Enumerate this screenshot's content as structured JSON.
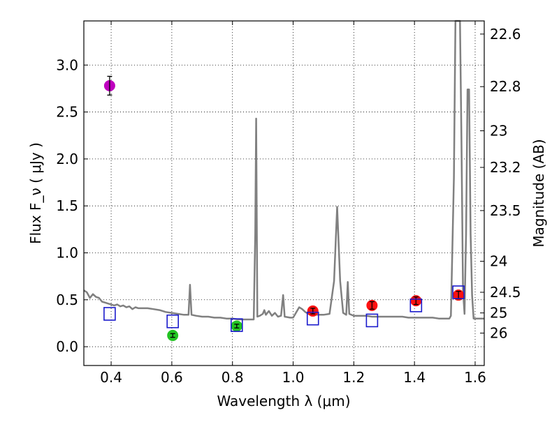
{
  "chart_data": {
    "type": "scatter",
    "xlabel": "Wavelength  λ (μm)",
    "ylabel": "Flux  F_ν  ( μJy )",
    "ylabel_right": "Magnitude (AB)",
    "xlim": [
      0.31,
      1.63
    ],
    "ylim": [
      -0.2,
      3.47
    ],
    "grid": true,
    "x_ticks": [
      0.4,
      0.6,
      0.8,
      1.0,
      1.2,
      1.4,
      1.6
    ],
    "x_tick_labels": [
      "0.4",
      "0.6",
      "0.8",
      "1.0",
      "1.2",
      "1.4",
      "1.6"
    ],
    "y_ticks": [
      0.0,
      0.5,
      1.0,
      1.5,
      2.0,
      2.5,
      3.0
    ],
    "y_tick_labels": [
      "0.0",
      "0.5",
      "1.0",
      "1.5",
      "2.0",
      "2.5",
      "3.0"
    ],
    "right_ticks": [
      {
        "label": "22.6",
        "flux": 3.33
      },
      {
        "label": "22.8",
        "flux": 2.77
      },
      {
        "label": "23",
        "flux": 2.3
      },
      {
        "label": "23.2",
        "flux": 1.91
      },
      {
        "label": "23.5",
        "flux": 1.45
      },
      {
        "label": "24",
        "flux": 0.91
      },
      {
        "label": "24.5",
        "flux": 0.58
      },
      {
        "label": "25",
        "flux": 0.36
      },
      {
        "label": "26",
        "flux": 0.145
      }
    ],
    "model_spectrum": {
      "color": "#808080",
      "points": [
        [
          0.31,
          0.6
        ],
        [
          0.32,
          0.58
        ],
        [
          0.33,
          0.52
        ],
        [
          0.34,
          0.56
        ],
        [
          0.35,
          0.53
        ],
        [
          0.36,
          0.52
        ],
        [
          0.37,
          0.48
        ],
        [
          0.38,
          0.47
        ],
        [
          0.39,
          0.46
        ],
        [
          0.4,
          0.45
        ],
        [
          0.41,
          0.44
        ],
        [
          0.42,
          0.45
        ],
        [
          0.43,
          0.43
        ],
        [
          0.44,
          0.44
        ],
        [
          0.45,
          0.42
        ],
        [
          0.46,
          0.43
        ],
        [
          0.47,
          0.4
        ],
        [
          0.48,
          0.42
        ],
        [
          0.49,
          0.41
        ],
        [
          0.5,
          0.41
        ],
        [
          0.52,
          0.41
        ],
        [
          0.54,
          0.4
        ],
        [
          0.56,
          0.39
        ],
        [
          0.58,
          0.37
        ],
        [
          0.6,
          0.36
        ],
        [
          0.62,
          0.35
        ],
        [
          0.64,
          0.34
        ],
        [
          0.655,
          0.34
        ],
        [
          0.66,
          0.66
        ],
        [
          0.665,
          0.34
        ],
        [
          0.68,
          0.33
        ],
        [
          0.7,
          0.32
        ],
        [
          0.72,
          0.32
        ],
        [
          0.74,
          0.31
        ],
        [
          0.76,
          0.31
        ],
        [
          0.78,
          0.3
        ],
        [
          0.8,
          0.3
        ],
        [
          0.82,
          0.29
        ],
        [
          0.84,
          0.29
        ],
        [
          0.86,
          0.29
        ],
        [
          0.87,
          0.29
        ],
        [
          0.875,
          1.2
        ],
        [
          0.878,
          2.43
        ],
        [
          0.882,
          0.32
        ],
        [
          0.89,
          0.33
        ],
        [
          0.9,
          0.35
        ],
        [
          0.905,
          0.39
        ],
        [
          0.91,
          0.34
        ],
        [
          0.92,
          0.38
        ],
        [
          0.93,
          0.33
        ],
        [
          0.94,
          0.36
        ],
        [
          0.95,
          0.32
        ],
        [
          0.96,
          0.33
        ],
        [
          0.967,
          0.55
        ],
        [
          0.972,
          0.32
        ],
        [
          0.99,
          0.31
        ],
        [
          1.0,
          0.31
        ],
        [
          1.02,
          0.42
        ],
        [
          1.03,
          0.4
        ],
        [
          1.04,
          0.37
        ],
        [
          1.05,
          0.35
        ],
        [
          1.06,
          0.34
        ],
        [
          1.08,
          0.34
        ],
        [
          1.1,
          0.34
        ],
        [
          1.12,
          0.35
        ],
        [
          1.135,
          0.7
        ],
        [
          1.145,
          1.49
        ],
        [
          1.155,
          0.7
        ],
        [
          1.165,
          0.36
        ],
        [
          1.175,
          0.34
        ],
        [
          1.18,
          0.69
        ],
        [
          1.185,
          0.35
        ],
        [
          1.2,
          0.33
        ],
        [
          1.22,
          0.33
        ],
        [
          1.24,
          0.33
        ],
        [
          1.26,
          0.32
        ],
        [
          1.28,
          0.32
        ],
        [
          1.3,
          0.32
        ],
        [
          1.33,
          0.32
        ],
        [
          1.36,
          0.32
        ],
        [
          1.38,
          0.31
        ],
        [
          1.4,
          0.31
        ],
        [
          1.42,
          0.31
        ],
        [
          1.44,
          0.31
        ],
        [
          1.46,
          0.31
        ],
        [
          1.48,
          0.3
        ],
        [
          1.5,
          0.3
        ],
        [
          1.515,
          0.3
        ],
        [
          1.52,
          0.33
        ],
        [
          1.53,
          1.8
        ],
        [
          1.535,
          3.47
        ],
        [
          1.545,
          3.47
        ],
        [
          1.55,
          3.47
        ],
        [
          1.555,
          2.2
        ],
        [
          1.56,
          0.6
        ],
        [
          1.565,
          0.35
        ],
        [
          1.57,
          1.2
        ],
        [
          1.575,
          2.74
        ],
        [
          1.58,
          2.74
        ],
        [
          1.585,
          1.2
        ],
        [
          1.59,
          0.55
        ],
        [
          1.595,
          0.3
        ],
        [
          1.63,
          0.3
        ]
      ]
    },
    "series": [
      {
        "marker": "circle",
        "color": "#bf00bf",
        "points": [
          {
            "x": 0.395,
            "y": 2.78,
            "err": 0.1
          }
        ]
      },
      {
        "marker": "circle",
        "color": "#22c322",
        "points": [
          {
            "x": 0.603,
            "y": 0.12,
            "err": 0.02
          },
          {
            "x": 0.814,
            "y": 0.22,
            "err": 0.02
          }
        ]
      },
      {
        "marker": "circle",
        "color": "#ff1111",
        "points": [
          {
            "x": 1.065,
            "y": 0.38,
            "err": 0.03
          },
          {
            "x": 1.26,
            "y": 0.44,
            "err": 0.04
          },
          {
            "x": 1.405,
            "y": 0.49,
            "err": 0.04
          },
          {
            "x": 1.545,
            "y": 0.55,
            "err": 0.04
          }
        ]
      },
      {
        "marker": "open-square",
        "color": "#1a1acc",
        "points": [
          {
            "x": 0.395,
            "y": 0.35
          },
          {
            "x": 0.603,
            "y": 0.27
          },
          {
            "x": 0.814,
            "y": 0.23
          },
          {
            "x": 1.065,
            "y": 0.3
          },
          {
            "x": 1.26,
            "y": 0.28
          },
          {
            "x": 1.405,
            "y": 0.44
          },
          {
            "x": 1.545,
            "y": 0.58
          }
        ]
      }
    ]
  }
}
